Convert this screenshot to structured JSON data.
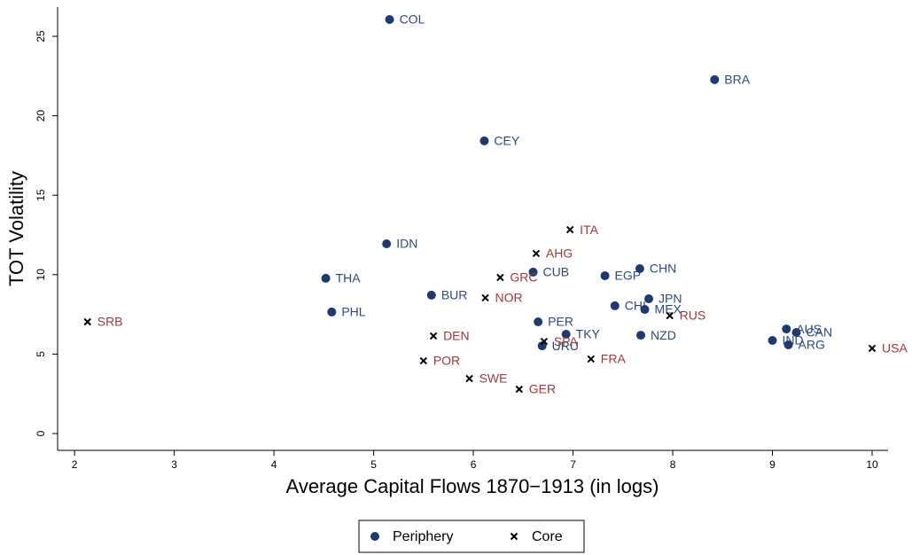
{
  "chart_data": {
    "type": "scatter",
    "x_label": "Average Capital Flows 1870−1913 (in logs)",
    "y_label": "TOT Volatility",
    "xlim": [
      1.83,
      10.16
    ],
    "ylim": [
      -1.06,
      26.84
    ],
    "xticks": [
      2,
      3,
      4,
      5,
      6,
      7,
      8,
      9,
      10
    ],
    "yticks": [
      0,
      5,
      10,
      15,
      20,
      25
    ],
    "series": [
      {
        "name": "Periphery",
        "marker": "circle",
        "color": "#1f3a6e",
        "label_color": "#2b4a80",
        "labels": [
          "COL",
          "BRA",
          "CEY",
          "IDN",
          "THA",
          "PHL",
          "BUR",
          "CUB",
          "EGP",
          "CHN",
          "CHI",
          "JPN",
          "MEX",
          "PER",
          "TKY",
          "URU",
          "NZD",
          "AUS",
          "CAN",
          "IND",
          "ARG"
        ],
        "x": [
          5.16,
          8.42,
          6.11,
          5.13,
          4.52,
          4.58,
          5.58,
          6.6,
          7.32,
          7.67,
          7.42,
          7.76,
          7.72,
          6.65,
          6.93,
          6.69,
          7.68,
          9.14,
          9.24,
          9.0,
          9.16
        ],
        "values": [
          26.06,
          22.27,
          18.42,
          11.94,
          9.77,
          7.65,
          8.71,
          10.16,
          9.93,
          10.38,
          8.04,
          8.48,
          7.81,
          7.03,
          6.25,
          5.52,
          6.19,
          6.58,
          6.36,
          5.86,
          5.58
        ]
      },
      {
        "name": "Core",
        "marker": "x",
        "color": "#000000",
        "label_color": "#9b3a3a",
        "labels": [
          "SRB",
          "ITA",
          "AHG",
          "GRC",
          "NOR",
          "DEN",
          "SPA",
          "RUS",
          "POR",
          "SWE",
          "FRA",
          "GER",
          "USA"
        ],
        "x": [
          2.13,
          6.97,
          6.63,
          6.27,
          6.12,
          5.6,
          6.71,
          7.97,
          5.5,
          5.96,
          7.18,
          6.46,
          10.0
        ],
        "values": [
          7.03,
          12.83,
          11.33,
          9.82,
          8.54,
          6.14,
          5.8,
          7.42,
          4.58,
          3.46,
          4.69,
          2.79,
          5.36
        ]
      }
    ]
  }
}
